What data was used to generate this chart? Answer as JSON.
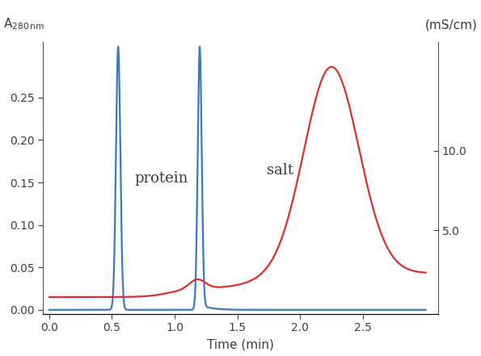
{
  "xlabel": "Time (min)",
  "ylim_left": [
    -0.005,
    0.315
  ],
  "ylim_right": [
    -0.27,
    16.8
  ],
  "xlim": [
    -0.05,
    3.1
  ],
  "yticks_left": [
    0.0,
    0.05,
    0.1,
    0.15,
    0.2,
    0.25
  ],
  "yticks_right": [
    5.0,
    10.0
  ],
  "xticks": [
    0.0,
    0.5,
    1.0,
    1.5,
    2.0,
    2.5
  ],
  "color_blue": "#3a7bbf",
  "color_red": "#d93030",
  "label_protein": "protein",
  "label_salt": "salt",
  "background_color": "#ffffff",
  "text_color": "#3d3d3d"
}
